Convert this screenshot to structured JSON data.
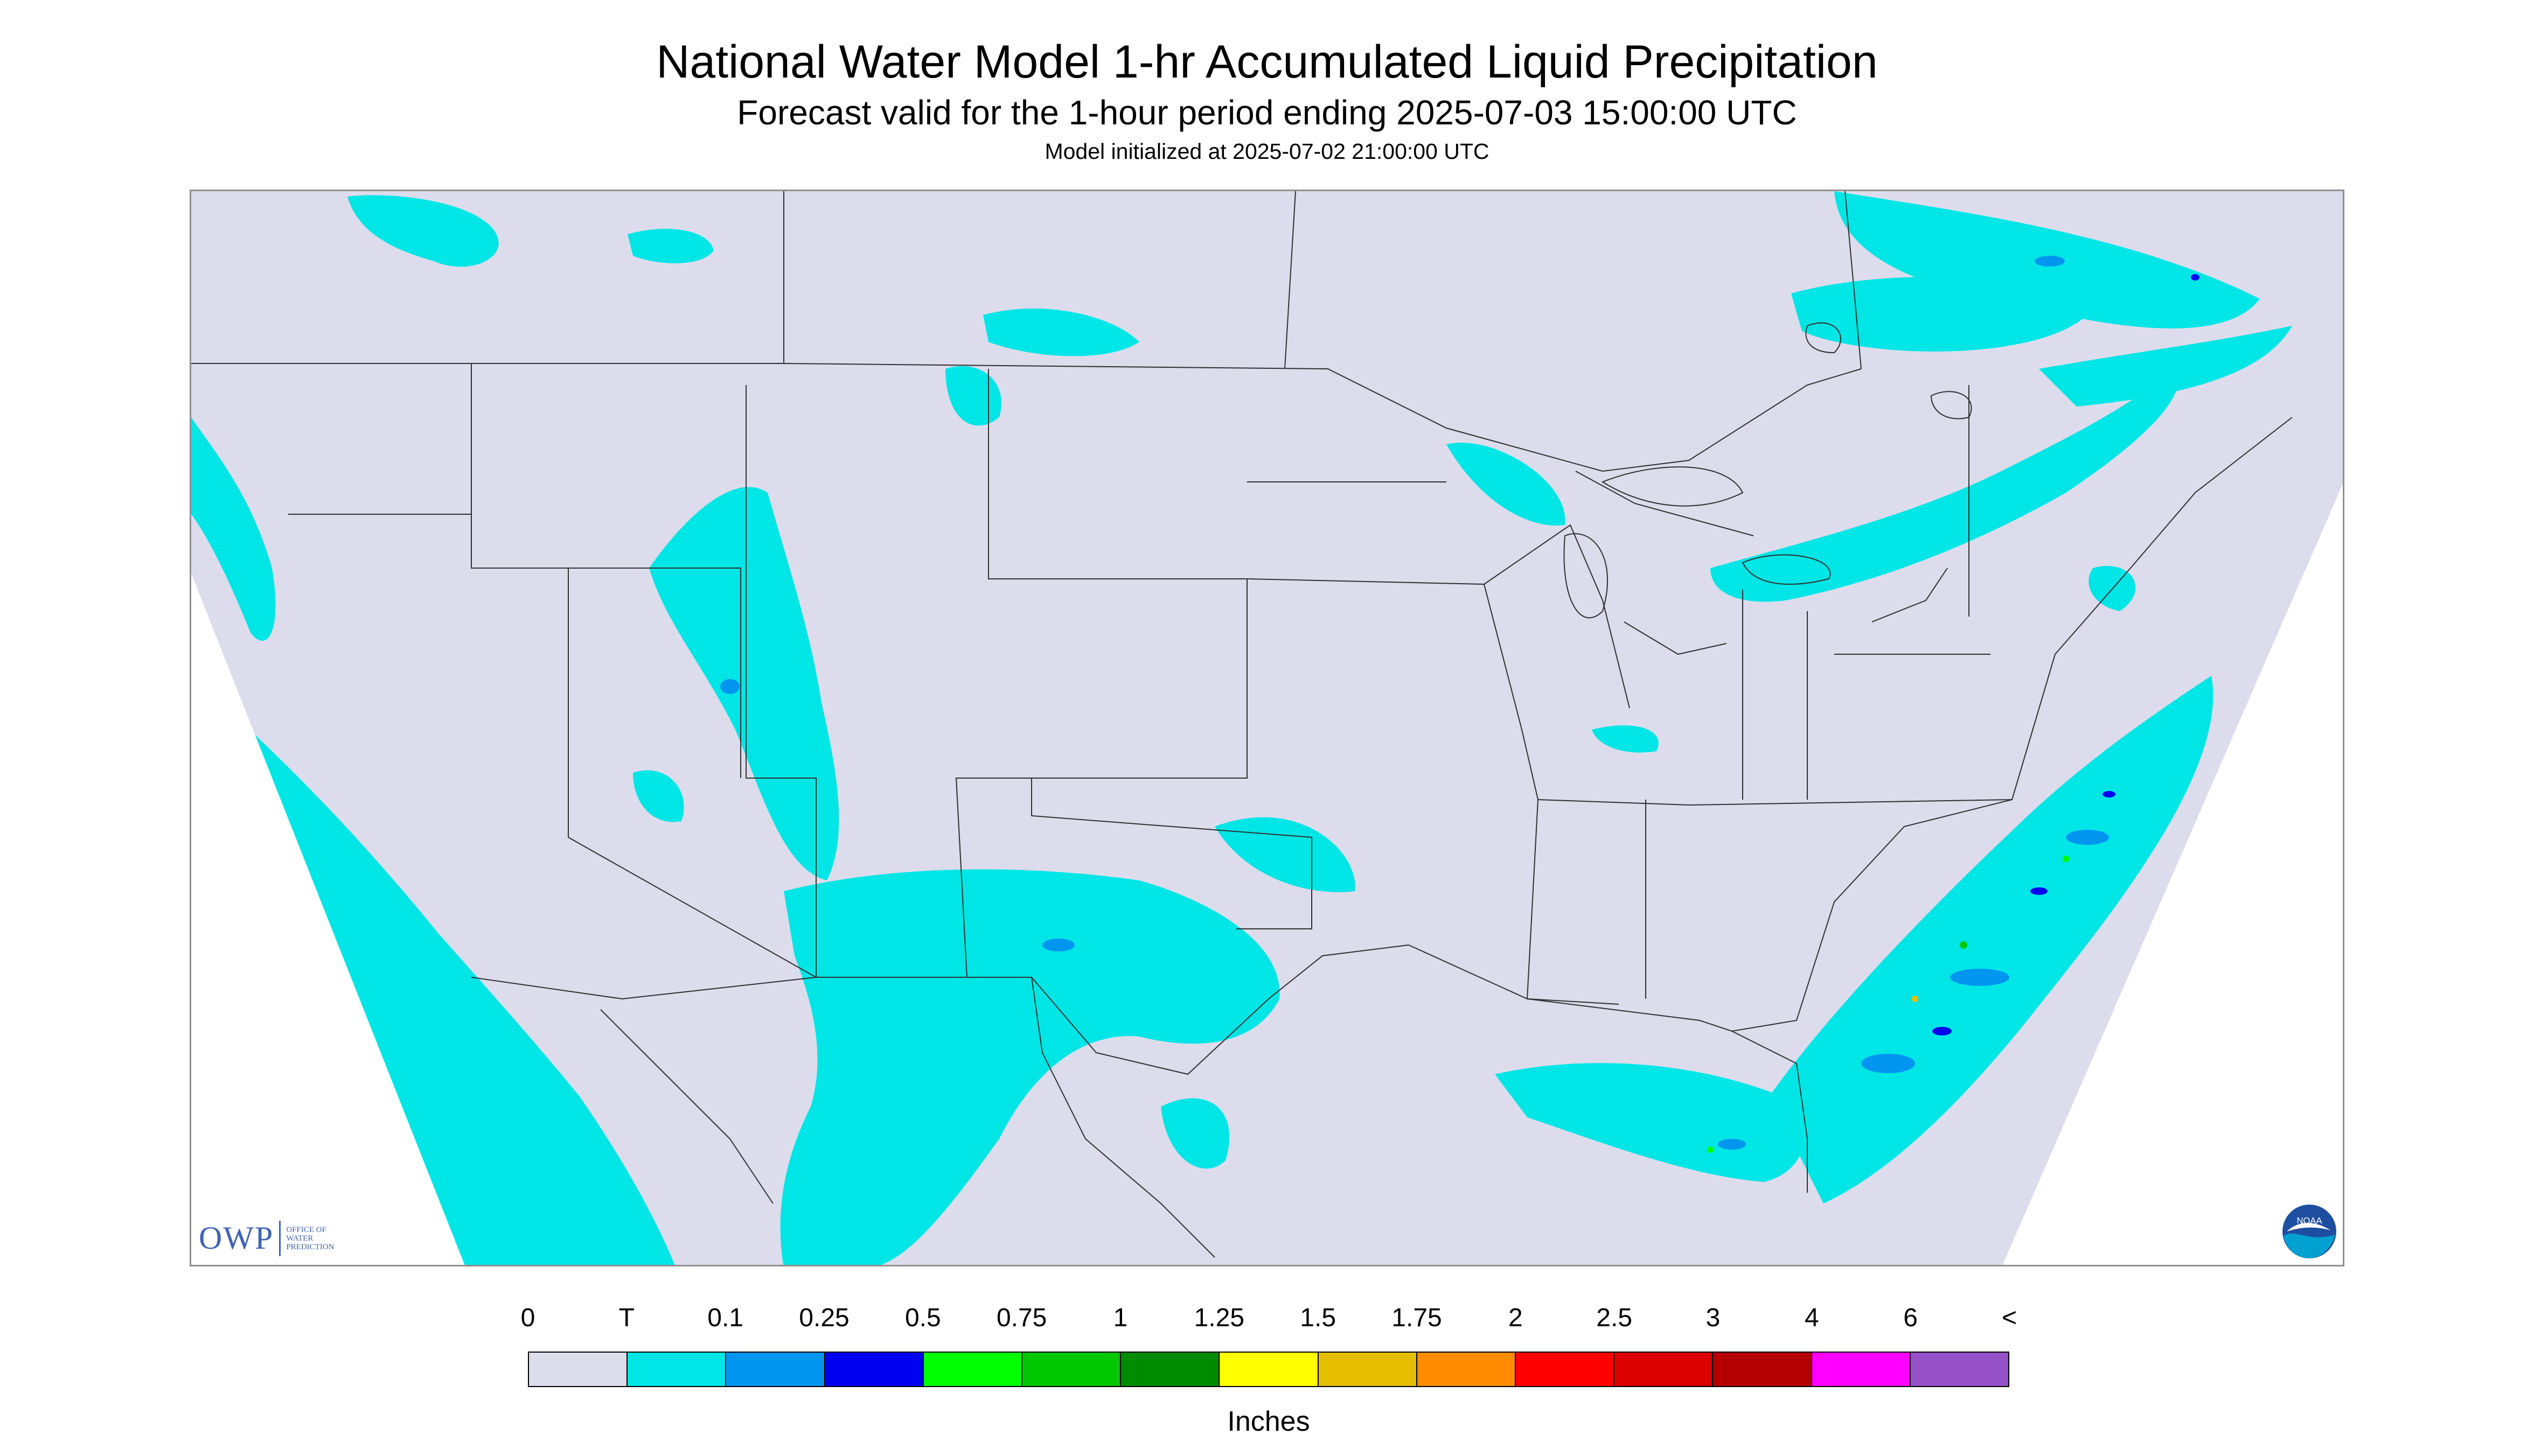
{
  "header": {
    "title": "National Water Model 1-hr Accumulated Liquid Precipitation",
    "subtitle": "Forecast valid for the 1-hour period ending 2025-07-03 15:00:00 UTC",
    "init_line": "Model initialized at 2025-07-02 21:00:00 UTC"
  },
  "map": {
    "background_color": "#dcdcec",
    "outside_color": "#ffffff",
    "border_color": "#303030"
  },
  "logos": {
    "owp_text": "OWP",
    "owp_line1": "OFFICE OF",
    "owp_line2": "WATER",
    "owp_line3": "PREDICTION",
    "noaa_text": "NOAA"
  },
  "legend": {
    "labels": [
      "0",
      "T",
      "0.1",
      "0.25",
      "0.5",
      "0.75",
      "1",
      "1.25",
      "1.5",
      "1.75",
      "2",
      "2.5",
      "3",
      "4",
      "6",
      "<"
    ],
    "colors": [
      "#dcdcec",
      "#00e6e6",
      "#0096f0",
      "#0000f0",
      "#00ff00",
      "#00c800",
      "#008c00",
      "#ffff00",
      "#e6be00",
      "#ff8c00",
      "#ff0000",
      "#dc0000",
      "#b40000",
      "#ff00ff",
      "#9650c8"
    ],
    "units": "Inches"
  }
}
